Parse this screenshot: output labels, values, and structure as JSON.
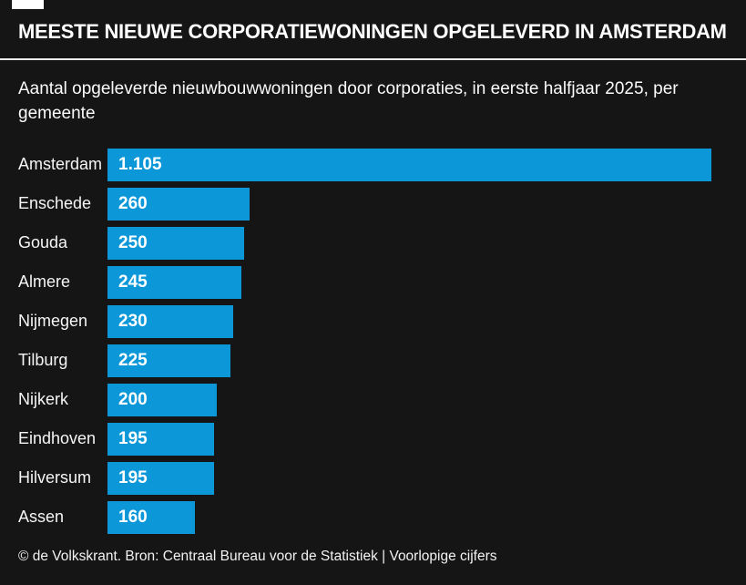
{
  "header": {
    "title": "MEESTE NIEUWE CORPORATIEWONINGEN OPGELEVERD IN AMSTERDAM"
  },
  "subtitle": "Aantal opgeleverde nieuwbouwwoningen door corporaties, in eerste halfjaar 2025, per gemeente",
  "footer": {
    "source": "© de Volkskrant. Bron: Centraal Bureau voor de Statistiek | Voorlopige cijfers"
  },
  "colors": {
    "background": "#151515",
    "bar": "#0b97d8",
    "text": "#ffffff",
    "divider": "#ececec"
  },
  "chart_data": {
    "type": "bar",
    "orientation": "horizontal",
    "title": "MEESTE NIEUWE CORPORATIEWONINGEN OPGELEVERD IN AMSTERDAM",
    "subtitle": "Aantal opgeleverde nieuwbouwwoningen door corporaties, in eerste halfjaar 2025, per gemeente",
    "source": "© de Volkskrant. Bron: Centraal Bureau voor de Statistiek | Voorlopige cijfers",
    "categories": [
      "Amsterdam",
      "Enschede",
      "Gouda",
      "Almere",
      "Nijmegen",
      "Tilburg",
      "Nijkerk",
      "Eindhoven",
      "Hilversum",
      "Assen"
    ],
    "values": [
      1105,
      260,
      250,
      245,
      230,
      225,
      200,
      195,
      195,
      160
    ],
    "value_labels": [
      "1.105",
      "260",
      "250",
      "245",
      "230",
      "225",
      "200",
      "195",
      "195",
      "160"
    ],
    "xlim": [
      0,
      1105
    ],
    "value_label_position": "inside-start",
    "grid": false,
    "legend": false,
    "bar_color": "#0b97d8"
  }
}
